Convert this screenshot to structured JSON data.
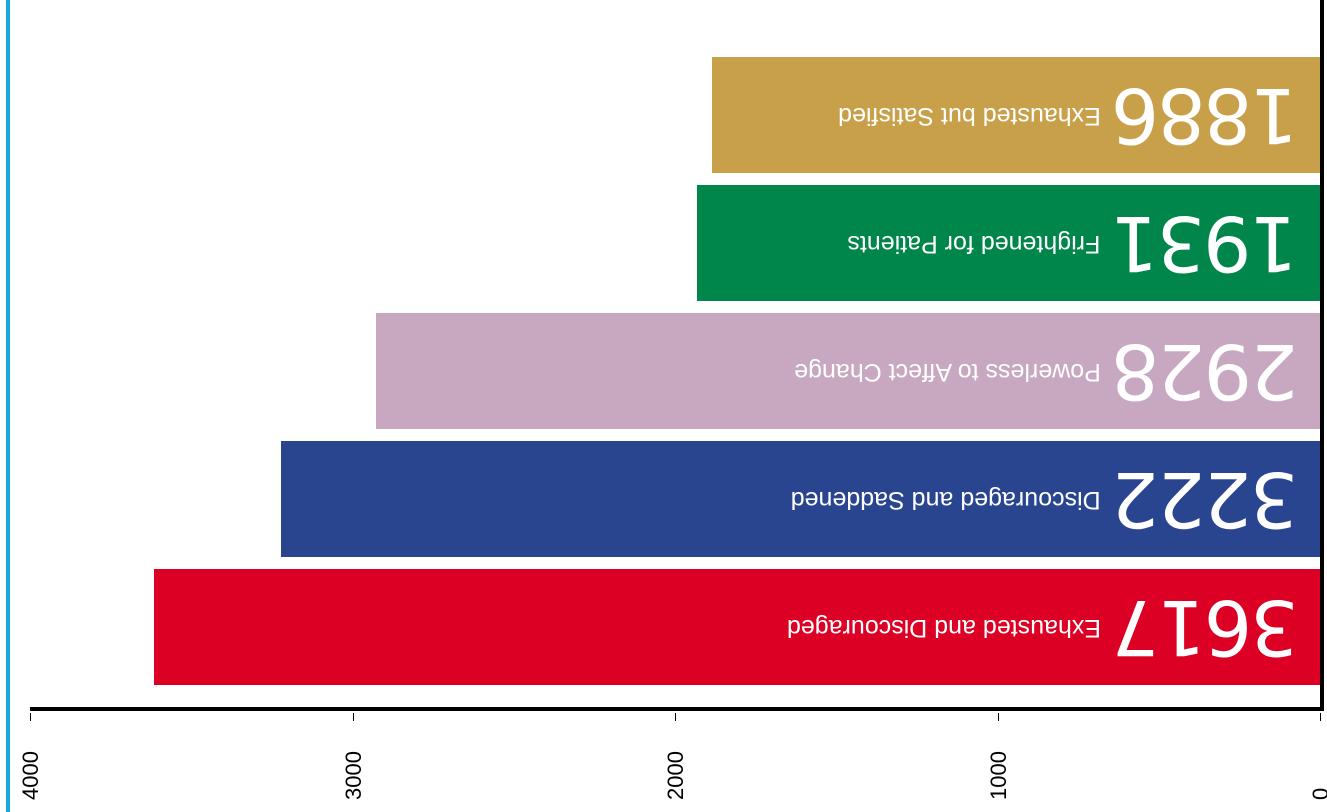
{
  "chart_data": {
    "type": "bar",
    "orientation": "horizontal",
    "categories": [
      "Exhausted and Discouraged",
      "Discouraged and Saddened",
      "Powerless to Affect Change",
      "Frightened for Patients",
      "Exhausted but Satisfied"
    ],
    "values": [
      3617,
      3222,
      2928,
      1931,
      1886
    ],
    "colors": [
      "#dc0024",
      "#2a4590",
      "#c8a8c0",
      "#00854a",
      "#c9a04a"
    ],
    "xlim": [
      0,
      4000
    ],
    "xticks": [
      0,
      1000,
      2000,
      3000,
      4000
    ]
  }
}
